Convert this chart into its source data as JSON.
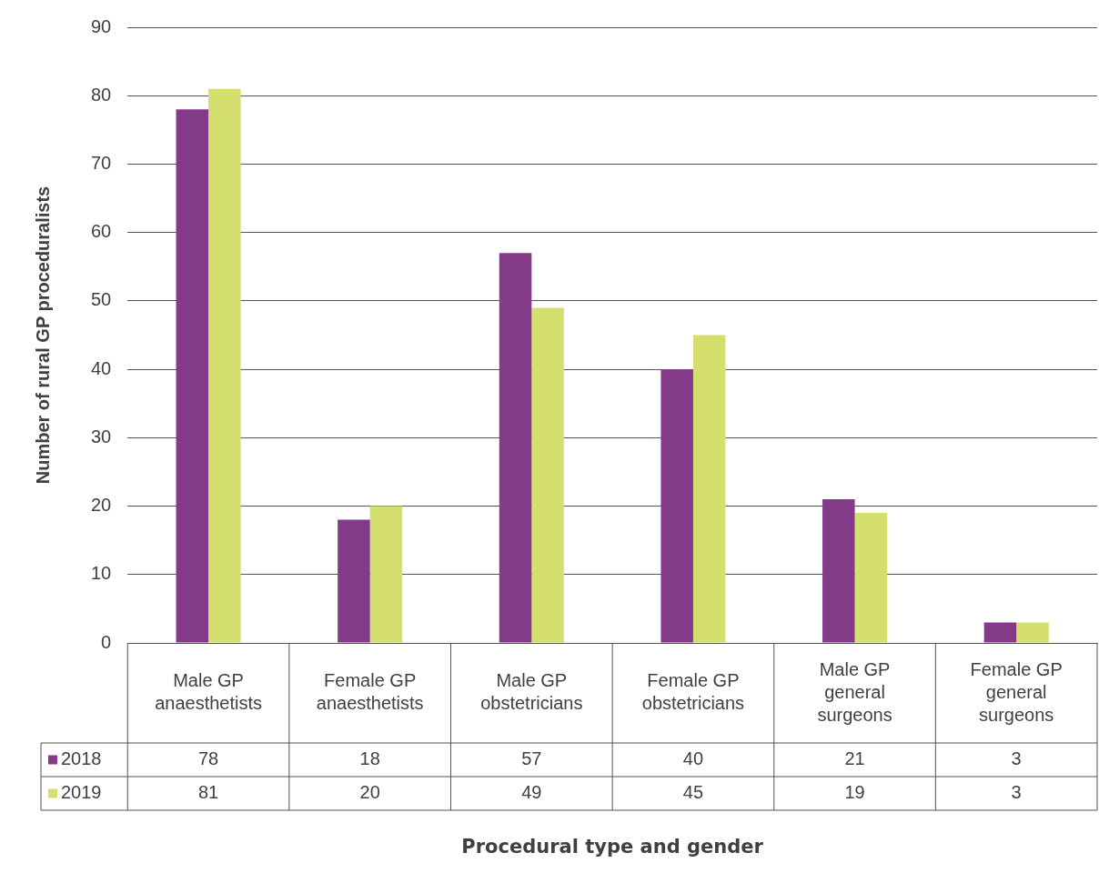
{
  "chart_data": {
    "type": "bar",
    "annotations": [
      "Procedural type and gender"
    ],
    "ylabel": "Number of rural GP proceduralists",
    "categories": [
      "Male GP anaesthetists",
      "Female GP anaesthetists",
      "Male GP obstetricians",
      "Female GP obstetricians",
      "Male GP general surgeons",
      "Female GP general surgeons"
    ],
    "series": [
      {
        "name": "2018",
        "color": "#833a88",
        "values": [
          78,
          18,
          57,
          40,
          21,
          3
        ]
      },
      {
        "name": "2019",
        "color": "#d4df6e",
        "values": [
          81,
          20,
          49,
          45,
          19,
          3
        ]
      }
    ],
    "ylim": [
      0,
      90
    ],
    "yticks": [
      0,
      10,
      20,
      30,
      40,
      50,
      60,
      70,
      80,
      90
    ],
    "grid": "y",
    "legend": "bottom",
    "data_labels": true
  }
}
